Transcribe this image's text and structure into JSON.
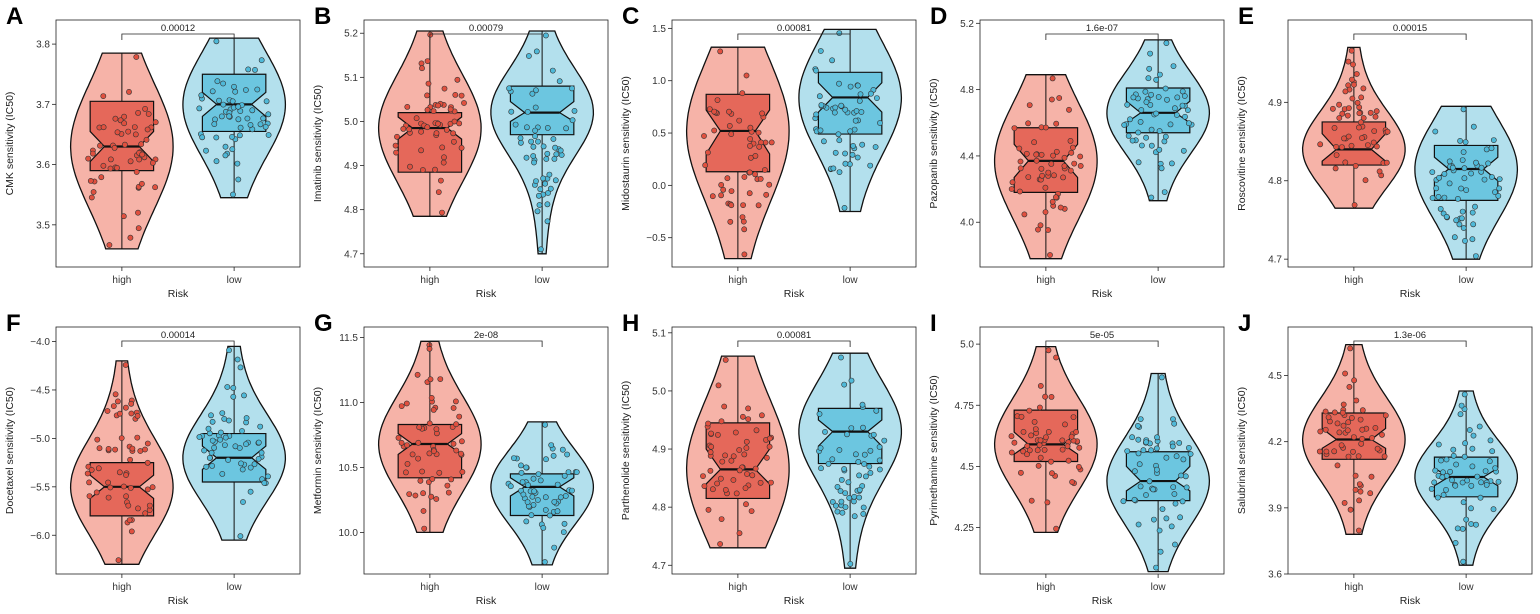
{
  "colors": {
    "high_fill": "#f6b3a8",
    "high_box": "#e5685a",
    "high_point": "#e0503f",
    "low_fill": "#b3e0ed",
    "low_box": "#6cc6e0",
    "low_point": "#4fb9d8",
    "stroke": "#111111"
  },
  "chart_data": [
    {
      "panel": "A",
      "type": "violin-box",
      "ylabel": "CMK sensitivity (IC50)",
      "xlabel": "Risk",
      "categories": [
        "high",
        "low"
      ],
      "pvalue": "0.00012",
      "yticks": [
        3.5,
        3.6,
        3.7,
        3.8
      ],
      "ylim": [
        3.43,
        3.84
      ],
      "groups": [
        {
          "name": "high",
          "min": 3.46,
          "q1": 3.59,
          "median": 3.63,
          "q3": 3.705,
          "max": 3.785,
          "notch": [
            3.605,
            3.655
          ]
        },
        {
          "name": "low",
          "min": 3.545,
          "q1": 3.655,
          "median": 3.7,
          "q3": 3.75,
          "max": 3.81,
          "notch": [
            3.68,
            3.72
          ]
        }
      ]
    },
    {
      "panel": "B",
      "type": "violin-box",
      "ylabel": "Imatinib sensitivity (IC50)",
      "xlabel": "Risk",
      "categories": [
        "high",
        "low"
      ],
      "pvalue": "0.00079",
      "yticks": [
        4.7,
        4.8,
        4.9,
        5.0,
        5.1,
        5.2
      ],
      "ylim": [
        4.67,
        5.23
      ],
      "groups": [
        {
          "name": "high",
          "min": 4.785,
          "q1": 4.885,
          "median": 4.985,
          "q3": 5.02,
          "max": 5.205,
          "notch": [
            4.96,
            5.01
          ]
        },
        {
          "name": "low",
          "min": 4.7,
          "q1": 4.97,
          "median": 5.02,
          "q3": 5.08,
          "max": 5.205,
          "notch": [
            5.0,
            5.045
          ]
        }
      ]
    },
    {
      "panel": "C",
      "type": "violin-box",
      "ylabel": "Midostaurin sensitivity (IC50)",
      "xlabel": "Risk",
      "categories": [
        "high",
        "low"
      ],
      "pvalue": "0.00081",
      "yticks": [
        -0.5,
        0.0,
        0.5,
        1.0,
        1.5
      ],
      "ylim": [
        -0.78,
        1.58
      ],
      "groups": [
        {
          "name": "high",
          "min": -0.7,
          "q1": 0.13,
          "median": 0.52,
          "q3": 0.87,
          "max": 1.32,
          "notch": [
            0.3,
            0.72
          ]
        },
        {
          "name": "low",
          "min": -0.25,
          "q1": 0.49,
          "median": 0.84,
          "q3": 1.08,
          "max": 1.49,
          "notch": [
            0.7,
            0.98
          ]
        }
      ]
    },
    {
      "panel": "D",
      "type": "violin-box",
      "ylabel": "Pazopanib sensitivity (IC50)",
      "xlabel": "Risk",
      "categories": [
        "high",
        "low"
      ],
      "pvalue": "1.6e-07",
      "yticks": [
        4.0,
        4.4,
        4.8,
        5.2
      ],
      "ylim": [
        3.73,
        5.22
      ],
      "groups": [
        {
          "name": "high",
          "min": 3.78,
          "q1": 4.18,
          "median": 4.37,
          "q3": 4.57,
          "max": 4.89,
          "notch": [
            4.27,
            4.47
          ]
        },
        {
          "name": "low",
          "min": 4.13,
          "q1": 4.54,
          "median": 4.66,
          "q3": 4.81,
          "max": 5.1,
          "notch": [
            4.6,
            4.73
          ]
        }
      ]
    },
    {
      "panel": "E",
      "type": "violin-box",
      "ylabel": "Roscovitine sensitivity (IC50)",
      "xlabel": "Risk",
      "categories": [
        "high",
        "low"
      ],
      "pvalue": "0.00015",
      "yticks": [
        4.7,
        4.8,
        4.9
      ],
      "ylim": [
        4.69,
        5.005
      ],
      "groups": [
        {
          "name": "high",
          "min": 4.765,
          "q1": 4.82,
          "median": 4.84,
          "q3": 4.875,
          "max": 4.97,
          "notch": [
            4.825,
            4.86
          ]
        },
        {
          "name": "low",
          "min": 4.7,
          "q1": 4.775,
          "median": 4.815,
          "q3": 4.845,
          "max": 4.895,
          "notch": [
            4.8,
            4.83
          ]
        }
      ]
    },
    {
      "panel": "F",
      "type": "violin-box",
      "ylabel": "Docetaxel sensitivity (IC50)",
      "xlabel": "Risk",
      "categories": [
        "high",
        "low"
      ],
      "pvalue": "0.00014",
      "yticks": [
        -6.0,
        -5.5,
        -5.0,
        -4.5,
        -4.0
      ],
      "ylim": [
        -6.4,
        -3.85
      ],
      "groups": [
        {
          "name": "high",
          "min": -6.3,
          "q1": -5.8,
          "median": -5.5,
          "q3": -5.25,
          "max": -4.2,
          "notch": [
            -5.62,
            -5.38
          ]
        },
        {
          "name": "low",
          "min": -6.05,
          "q1": -5.45,
          "median": -5.2,
          "q3": -4.95,
          "max": -4.05,
          "notch": [
            -5.32,
            -5.08
          ]
        }
      ]
    },
    {
      "panel": "G",
      "type": "violin-box",
      "ylabel": "Metformin sensitivity (IC50)",
      "xlabel": "Risk",
      "categories": [
        "high",
        "low"
      ],
      "pvalue": "2e-08",
      "yticks": [
        10.0,
        10.5,
        11.0,
        11.5
      ],
      "ylim": [
        9.68,
        11.58
      ],
      "groups": [
        {
          "name": "high",
          "min": 10.0,
          "q1": 10.42,
          "median": 10.68,
          "q3": 10.83,
          "max": 11.47,
          "notch": [
            10.6,
            10.76
          ]
        },
        {
          "name": "low",
          "min": 9.75,
          "q1": 10.13,
          "median": 10.35,
          "q3": 10.45,
          "max": 10.85,
          "notch": [
            10.28,
            10.42
          ]
        }
      ]
    },
    {
      "panel": "H",
      "type": "violin-box",
      "ylabel": "Parthenolide sensitivity (IC50)",
      "xlabel": "Risk",
      "categories": [
        "high",
        "low"
      ],
      "pvalue": "0.00081",
      "yticks": [
        4.7,
        4.8,
        4.9,
        5.0,
        5.1
      ],
      "ylim": [
        4.685,
        5.11
      ],
      "groups": [
        {
          "name": "high",
          "min": 4.73,
          "q1": 4.815,
          "median": 4.865,
          "q3": 4.945,
          "max": 5.06,
          "notch": [
            4.84,
            4.9
          ]
        },
        {
          "name": "low",
          "min": 4.695,
          "q1": 4.875,
          "median": 4.93,
          "q3": 4.97,
          "max": 5.065,
          "notch": [
            4.905,
            4.95
          ]
        }
      ]
    },
    {
      "panel": "I",
      "type": "violin-box",
      "ylabel": "Pyrimethamine sensitivity (IC50)",
      "xlabel": "Risk",
      "categories": [
        "high",
        "low"
      ],
      "pvalue": "5e-05",
      "yticks": [
        4.25,
        4.5,
        4.75,
        5.0
      ],
      "ylim": [
        4.06,
        5.07
      ],
      "groups": [
        {
          "name": "high",
          "min": 4.23,
          "q1": 4.52,
          "median": 4.59,
          "q3": 4.73,
          "max": 4.99,
          "notch": [
            4.55,
            4.64
          ]
        },
        {
          "name": "low",
          "min": 4.07,
          "q1": 4.36,
          "median": 4.44,
          "q3": 4.56,
          "max": 4.88,
          "notch": [
            4.4,
            4.5
          ]
        }
      ]
    },
    {
      "panel": "J",
      "type": "violin-box",
      "ylabel": "Salubrinal sensitivity (IC50)",
      "xlabel": "Risk",
      "categories": [
        "high",
        "low"
      ],
      "pvalue": "1.3e-06",
      "yticks": [
        3.6,
        3.9,
        4.2,
        4.5
      ],
      "ylim": [
        3.6,
        4.72
      ],
      "groups": [
        {
          "name": "high",
          "min": 3.78,
          "q1": 4.12,
          "median": 4.21,
          "q3": 4.33,
          "max": 4.64,
          "notch": [
            4.17,
            4.26
          ]
        },
        {
          "name": "low",
          "min": 3.64,
          "q1": 3.95,
          "median": 4.04,
          "q3": 4.13,
          "max": 4.43,
          "notch": [
            4.0,
            4.08
          ]
        }
      ]
    }
  ]
}
